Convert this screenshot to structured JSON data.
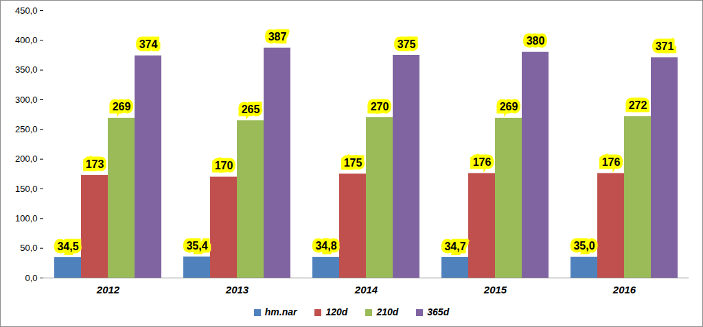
{
  "chart_data": {
    "type": "bar",
    "categories": [
      "2012",
      "2013",
      "2014",
      "2015",
      "2016"
    ],
    "series": [
      {
        "name": "hm.nar",
        "color": "#4f81bd",
        "values": [
          34.5,
          35.4,
          34.8,
          34.7,
          35.0
        ],
        "value_labels": [
          "34,5",
          "35,4",
          "34,8",
          "34,7",
          "35,0"
        ]
      },
      {
        "name": "120d",
        "color": "#c0504d",
        "values": [
          173,
          170,
          175,
          176,
          176
        ]
      },
      {
        "name": "210d",
        "color": "#9bbb59",
        "values": [
          269,
          265,
          270,
          269,
          272
        ]
      },
      {
        "name": "365d",
        "color": "#8064a2",
        "values": [
          374,
          387,
          375,
          380,
          371
        ]
      }
    ],
    "ylim": [
      0,
      450
    ],
    "yticks": [
      {
        "value": 0,
        "label": "0,0"
      },
      {
        "value": 50,
        "label": "50,0"
      },
      {
        "value": 100,
        "label": "100,0"
      },
      {
        "value": 150,
        "label": "150,0"
      },
      {
        "value": 200,
        "label": "200,0"
      },
      {
        "value": 250,
        "label": "250,0"
      },
      {
        "value": 300,
        "label": "300,0"
      },
      {
        "value": 350,
        "label": "350,0"
      },
      {
        "value": 400,
        "label": "400,0"
      },
      {
        "value": 450,
        "label": "450,0"
      }
    ],
    "grid": false,
    "data_labels": true,
    "legend": "bottom"
  }
}
